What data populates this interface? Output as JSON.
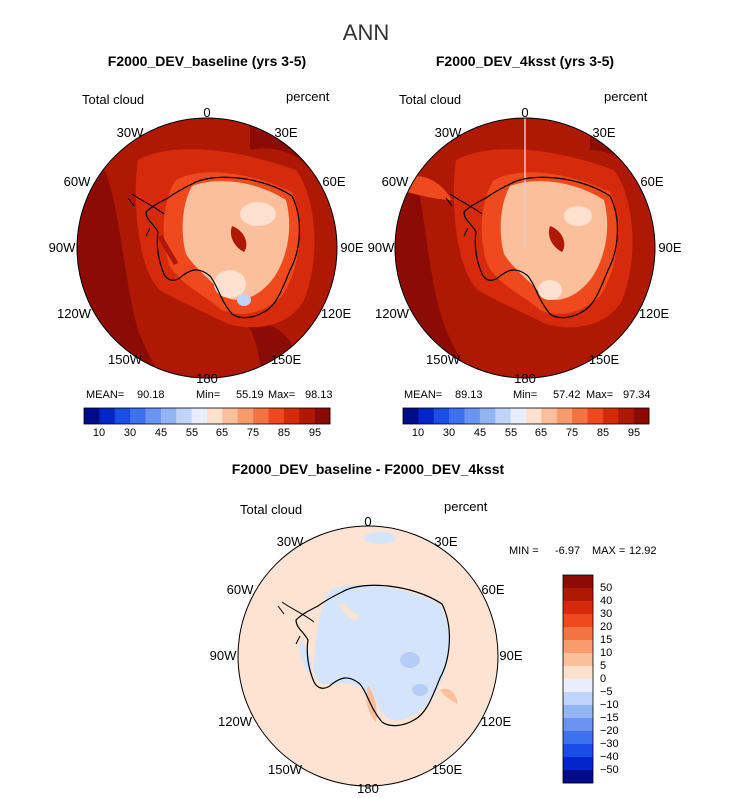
{
  "figure": {
    "season": "ANN",
    "variable_label": "Total cloud",
    "units": "percent"
  },
  "colors": {
    "dark_red": "#8c0b04",
    "land_outline": "#000000",
    "ocean_diff": "#fde3d2"
  },
  "chart_data": [
    {
      "type": "heatmap",
      "projection": "south-polar-stereographic",
      "title": "F2000_DEV_baseline (yrs 3-5)",
      "variable": "Total cloud",
      "units": "percent",
      "lon_labels": [
        "0",
        "30E",
        "60E",
        "90E",
        "120E",
        "150E",
        "180",
        "150W",
        "120W",
        "90W",
        "60W",
        "30W"
      ],
      "stats": {
        "mean_label": "MEAN=",
        "mean": "90.18",
        "min_label": "Min=",
        "min": "55.19",
        "max_label": "Max=",
        "max": "98.13"
      },
      "colorbar": {
        "orientation": "horizontal",
        "tick_labels": [
          "10",
          "30",
          "45",
          "55",
          "65",
          "75",
          "85",
          "95"
        ],
        "colors": [
          "#000b8a",
          "#0025c9",
          "#1a4ce6",
          "#3f70ee",
          "#6a93f2",
          "#95b4f5",
          "#c0d3f8",
          "#e8eefb",
          "#fde0ce",
          "#fbbf9b",
          "#f89c6d",
          "#f47341",
          "#ee4a1e",
          "#d52a0b",
          "#b01806",
          "#8c0b04"
        ]
      }
    },
    {
      "type": "heatmap",
      "projection": "south-polar-stereographic",
      "title": "F2000_DEV_4ksst (yrs 3-5)",
      "variable": "Total cloud",
      "units": "percent",
      "lon_labels": [
        "0",
        "30E",
        "60E",
        "90E",
        "120E",
        "150E",
        "180",
        "150W",
        "120W",
        "90W",
        "60W",
        "30W"
      ],
      "stats": {
        "mean_label": "MEAN=",
        "mean": "89.13",
        "min_label": "Min=",
        "min": "57.42",
        "max_label": "Max=",
        "max": "97.34"
      },
      "colorbar": {
        "orientation": "horizontal",
        "tick_labels": [
          "10",
          "30",
          "45",
          "55",
          "65",
          "75",
          "85",
          "95"
        ],
        "colors": [
          "#000b8a",
          "#0025c9",
          "#1a4ce6",
          "#3f70ee",
          "#6a93f2",
          "#95b4f5",
          "#c0d3f8",
          "#e8eefb",
          "#fde0ce",
          "#fbbf9b",
          "#f89c6d",
          "#f47341",
          "#ee4a1e",
          "#d52a0b",
          "#b01806",
          "#8c0b04"
        ]
      }
    },
    {
      "type": "heatmap",
      "projection": "south-polar-stereographic",
      "title": "F2000_DEV_baseline - F2000_DEV_4ksst",
      "variable": "Total cloud",
      "units": "percent",
      "lon_labels": [
        "0",
        "30E",
        "60E",
        "90E",
        "120E",
        "150E",
        "180",
        "150W",
        "120W",
        "90W",
        "60W",
        "30W"
      ],
      "stats": {
        "min_label": "MIN =",
        "min": "-6.97",
        "max_label": "MAX =",
        "max": "12.92"
      },
      "colorbar": {
        "orientation": "vertical",
        "tick_labels": [
          "50",
          "40",
          "30",
          "20",
          "15",
          "10",
          "5",
          "0",
          "−5",
          "−10",
          "−15",
          "−20",
          "−30",
          "−40",
          "−50"
        ],
        "colors": [
          "#8c0b04",
          "#b01806",
          "#d52a0b",
          "#ee4a1e",
          "#f47341",
          "#f89c6d",
          "#fbbf9b",
          "#fde0ce",
          "#e8eefb",
          "#c0d3f8",
          "#95b4f5",
          "#6a93f2",
          "#3f70ee",
          "#1a4ce6",
          "#0025c9",
          "#000b8a"
        ]
      }
    }
  ]
}
